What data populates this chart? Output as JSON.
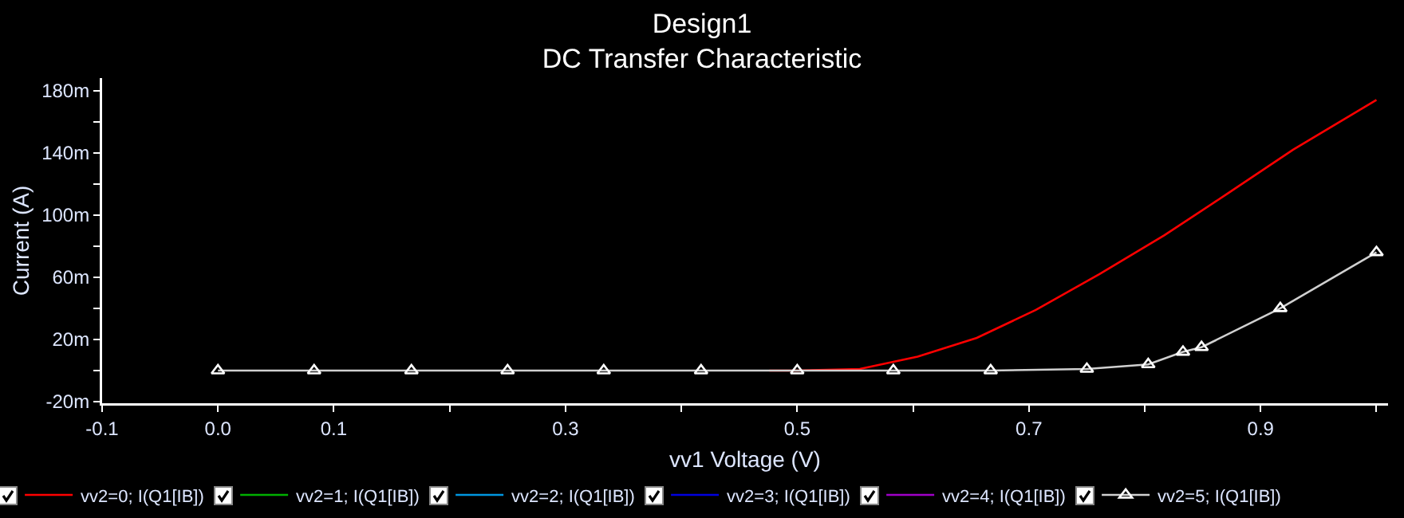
{
  "chart_data": {
    "type": "line",
    "title": "Design1",
    "subtitle": "DC Transfer Characteristic",
    "xlabel": "vv1 Voltage (V)",
    "ylabel": "Current (A)",
    "xlim": [
      -0.1,
      1.01
    ],
    "xticks": [
      -0.1,
      {
        "value": 0.0,
        "label": "0.0"
      },
      0.1,
      {
        "value": 0.2,
        "label": null
      },
      0.3,
      {
        "value": 0.4,
        "label": null
      },
      0.5,
      {
        "value": 0.6,
        "label": null
      },
      0.7,
      {
        "value": 0.8,
        "label": null
      },
      0.9,
      {
        "value": 1.0,
        "label": null
      }
    ],
    "ylim": [
      -21,
      188
    ],
    "yticks": [
      {
        "value": -20,
        "label": "-20m"
      },
      {
        "value": 0,
        "label": null
      },
      {
        "value": 20,
        "label": "20m"
      },
      {
        "value": 40,
        "label": null
      },
      {
        "value": 60,
        "label": "60m"
      },
      {
        "value": 80,
        "label": null
      },
      {
        "value": 100,
        "label": "100m"
      },
      {
        "value": 120,
        "label": null
      },
      {
        "value": 140,
        "label": "140m"
      },
      {
        "value": 160,
        "label": null
      },
      {
        "value": 180,
        "label": "180m"
      }
    ],
    "grid": false,
    "legend": "bottom",
    "line_style": "solid",
    "series": [
      {
        "name": "vv2=0; I(Q1[IB])",
        "color": "#ff0000",
        "marker": "none",
        "x": [
          0.476,
          0.5,
          0.554,
          0.604,
          0.655,
          0.706,
          0.761,
          0.817,
          0.872,
          0.928,
          1.0
        ],
        "values": [
          0,
          0,
          1,
          9,
          21,
          39,
          62,
          87,
          114,
          142,
          174
        ]
      },
      {
        "name": "vv2=1; I(Q1[IB])",
        "color": "#00b000",
        "marker": "none"
      },
      {
        "name": "vv2=2; I(Q1[IB])",
        "color": "#0096e0",
        "marker": "none"
      },
      {
        "name": "vv2=3; I(Q1[IB])",
        "color": "#0000e0",
        "marker": "none"
      },
      {
        "name": "vv2=4; I(Q1[IB])",
        "color": "#a000c8",
        "marker": "none"
      },
      {
        "name": "vv2=5; I(Q1[IB])",
        "color": "#d0d0d0",
        "marker": "triangle",
        "x": [
          0,
          0.083,
          0.167,
          0.25,
          0.333,
          0.417,
          0.5,
          0.583,
          0.667,
          0.75,
          0.803,
          0.833,
          0.849,
          0.917,
          1.0
        ],
        "values": [
          0,
          0,
          0,
          0,
          0,
          0,
          0,
          0,
          0,
          1,
          4,
          12,
          15,
          40,
          76
        ]
      }
    ]
  }
}
